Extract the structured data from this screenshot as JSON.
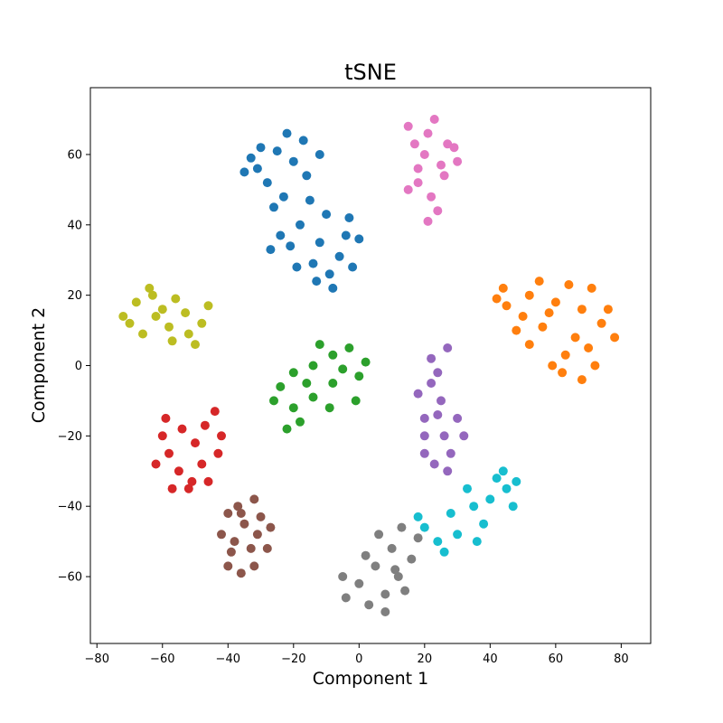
{
  "chart_data": {
    "type": "scatter",
    "title": "tSNE",
    "xlabel": "Component 1",
    "ylabel": "Component 2",
    "xlim": [
      -82,
      89
    ],
    "ylim": [
      -79,
      79
    ],
    "xticks": [
      -80,
      -60,
      -40,
      -20,
      0,
      20,
      40,
      60,
      80
    ],
    "yticks": [
      -60,
      -40,
      -20,
      0,
      20,
      40,
      60
    ],
    "xtick_labels": [
      "−80",
      "−60",
      "−40",
      "−20",
      "0",
      "20",
      "40",
      "60",
      "80"
    ],
    "ytick_labels": [
      "−60",
      "−40",
      "−20",
      "0",
      "20",
      "40",
      "60"
    ],
    "grid": false,
    "legend": "none",
    "series": [
      {
        "color": "#1f77b4",
        "points": [
          [
            -25,
            61
          ],
          [
            -31,
            56
          ],
          [
            -20,
            58
          ],
          [
            -28,
            52
          ],
          [
            -16,
            54
          ],
          [
            -12,
            60
          ],
          [
            -23,
            48
          ],
          [
            -18,
            40
          ],
          [
            -12,
            35
          ],
          [
            -21,
            34
          ],
          [
            -14,
            29
          ],
          [
            -6,
            31
          ],
          [
            -8,
            22
          ],
          [
            -4,
            37
          ],
          [
            -10,
            43
          ],
          [
            -26,
            45
          ],
          [
            -33,
            59
          ],
          [
            -17,
            64
          ],
          [
            -22,
            66
          ],
          [
            -30,
            62
          ],
          [
            -35,
            55
          ],
          [
            -24,
            37
          ],
          [
            -19,
            28
          ],
          [
            -27,
            33
          ],
          [
            -15,
            47
          ],
          [
            -9,
            26
          ],
          [
            -2,
            28
          ],
          [
            0,
            36
          ],
          [
            -3,
            42
          ],
          [
            -13,
            24
          ]
        ]
      },
      {
        "color": "#ff7f0e",
        "points": [
          [
            45,
            17
          ],
          [
            52,
            20
          ],
          [
            60,
            18
          ],
          [
            68,
            16
          ],
          [
            74,
            12
          ],
          [
            78,
            8
          ],
          [
            70,
            5
          ],
          [
            63,
            3
          ],
          [
            56,
            11
          ],
          [
            50,
            14
          ],
          [
            44,
            22
          ],
          [
            55,
            24
          ],
          [
            64,
            23
          ],
          [
            71,
            22
          ],
          [
            76,
            16
          ],
          [
            66,
            8
          ],
          [
            59,
            0
          ],
          [
            52,
            6
          ],
          [
            48,
            10
          ],
          [
            72,
            0
          ],
          [
            68,
            -4
          ],
          [
            62,
            -2
          ],
          [
            42,
            19
          ],
          [
            58,
            15
          ]
        ]
      },
      {
        "color": "#2ca02c",
        "points": [
          [
            -3,
            5
          ],
          [
            -8,
            3
          ],
          [
            -14,
            0
          ],
          [
            -20,
            -2
          ],
          [
            -24,
            -6
          ],
          [
            -20,
            -12
          ],
          [
            -14,
            -9
          ],
          [
            -8,
            -5
          ],
          [
            0,
            -3
          ],
          [
            -5,
            -1
          ],
          [
            -18,
            -16
          ],
          [
            -26,
            -10
          ],
          [
            -9,
            -12
          ],
          [
            -12,
            6
          ],
          [
            -1,
            -10
          ],
          [
            2,
            1
          ],
          [
            -16,
            -5
          ],
          [
            -22,
            -18
          ]
        ]
      },
      {
        "color": "#d62728",
        "points": [
          [
            -60,
            -20
          ],
          [
            -58,
            -25
          ],
          [
            -55,
            -30
          ],
          [
            -50,
            -22
          ],
          [
            -47,
            -17
          ],
          [
            -44,
            -13
          ],
          [
            -52,
            -35
          ],
          [
            -57,
            -35
          ],
          [
            -62,
            -28
          ],
          [
            -54,
            -18
          ],
          [
            -48,
            -28
          ],
          [
            -43,
            -25
          ],
          [
            -51,
            -33
          ],
          [
            -59,
            -15
          ],
          [
            -42,
            -20
          ],
          [
            -46,
            -33
          ]
        ]
      },
      {
        "color": "#9467bd",
        "points": [
          [
            22,
            -5
          ],
          [
            25,
            -10
          ],
          [
            20,
            -15
          ],
          [
            26,
            -20
          ],
          [
            28,
            -25
          ],
          [
            23,
            -28
          ],
          [
            20,
            -25
          ],
          [
            24,
            -2
          ],
          [
            27,
            5
          ],
          [
            22,
            2
          ],
          [
            18,
            -8
          ],
          [
            30,
            -15
          ],
          [
            27,
            -30
          ],
          [
            20,
            -20
          ],
          [
            32,
            -20
          ],
          [
            24,
            -14
          ]
        ]
      },
      {
        "color": "#8c564b",
        "points": [
          [
            -40,
            -42
          ],
          [
            -35,
            -45
          ],
          [
            -31,
            -48
          ],
          [
            -28,
            -52
          ],
          [
            -32,
            -57
          ],
          [
            -36,
            -59
          ],
          [
            -39,
            -53
          ],
          [
            -42,
            -48
          ],
          [
            -36,
            -42
          ],
          [
            -30,
            -43
          ],
          [
            -27,
            -46
          ],
          [
            -38,
            -50
          ],
          [
            -33,
            -52
          ],
          [
            -40,
            -57
          ],
          [
            -32,
            -38
          ],
          [
            -37,
            -40
          ]
        ]
      },
      {
        "color": "#e377c2",
        "points": [
          [
            15,
            68
          ],
          [
            21,
            66
          ],
          [
            27,
            63
          ],
          [
            25,
            57
          ],
          [
            18,
            56
          ],
          [
            15,
            50
          ],
          [
            22,
            48
          ],
          [
            26,
            54
          ],
          [
            30,
            58
          ],
          [
            20,
            60
          ],
          [
            17,
            63
          ],
          [
            24,
            44
          ],
          [
            21,
            41
          ],
          [
            29,
            62
          ],
          [
            23,
            70
          ],
          [
            18,
            52
          ]
        ]
      },
      {
        "color": "#7f7f7f",
        "points": [
          [
            3,
            -68
          ],
          [
            8,
            -65
          ],
          [
            12,
            -60
          ],
          [
            16,
            -55
          ],
          [
            10,
            -52
          ],
          [
            5,
            -57
          ],
          [
            0,
            -62
          ],
          [
            -4,
            -66
          ],
          [
            8,
            -70
          ],
          [
            14,
            -64
          ],
          [
            2,
            -54
          ],
          [
            13,
            -46
          ],
          [
            18,
            -49
          ],
          [
            6,
            -48
          ],
          [
            -5,
            -60
          ],
          [
            11,
            -58
          ]
        ]
      },
      {
        "color": "#bcbd22",
        "points": [
          [
            -68,
            18
          ],
          [
            -62,
            14
          ],
          [
            -58,
            11
          ],
          [
            -53,
            15
          ],
          [
            -48,
            12
          ],
          [
            -63,
            20
          ],
          [
            -56,
            19
          ],
          [
            -70,
            12
          ],
          [
            -66,
            9
          ],
          [
            -52,
            9
          ],
          [
            -60,
            16
          ],
          [
            -46,
            17
          ],
          [
            -72,
            14
          ],
          [
            -57,
            7
          ],
          [
            -50,
            6
          ],
          [
            -64,
            22
          ]
        ]
      },
      {
        "color": "#17becf",
        "points": [
          [
            35,
            -40
          ],
          [
            40,
            -38
          ],
          [
            45,
            -35
          ],
          [
            38,
            -45
          ],
          [
            30,
            -48
          ],
          [
            24,
            -50
          ],
          [
            20,
            -46
          ],
          [
            42,
            -32
          ],
          [
            47,
            -40
          ],
          [
            33,
            -35
          ],
          [
            28,
            -42
          ],
          [
            26,
            -53
          ],
          [
            36,
            -50
          ],
          [
            44,
            -30
          ],
          [
            48,
            -33
          ],
          [
            18,
            -43
          ]
        ]
      }
    ]
  }
}
